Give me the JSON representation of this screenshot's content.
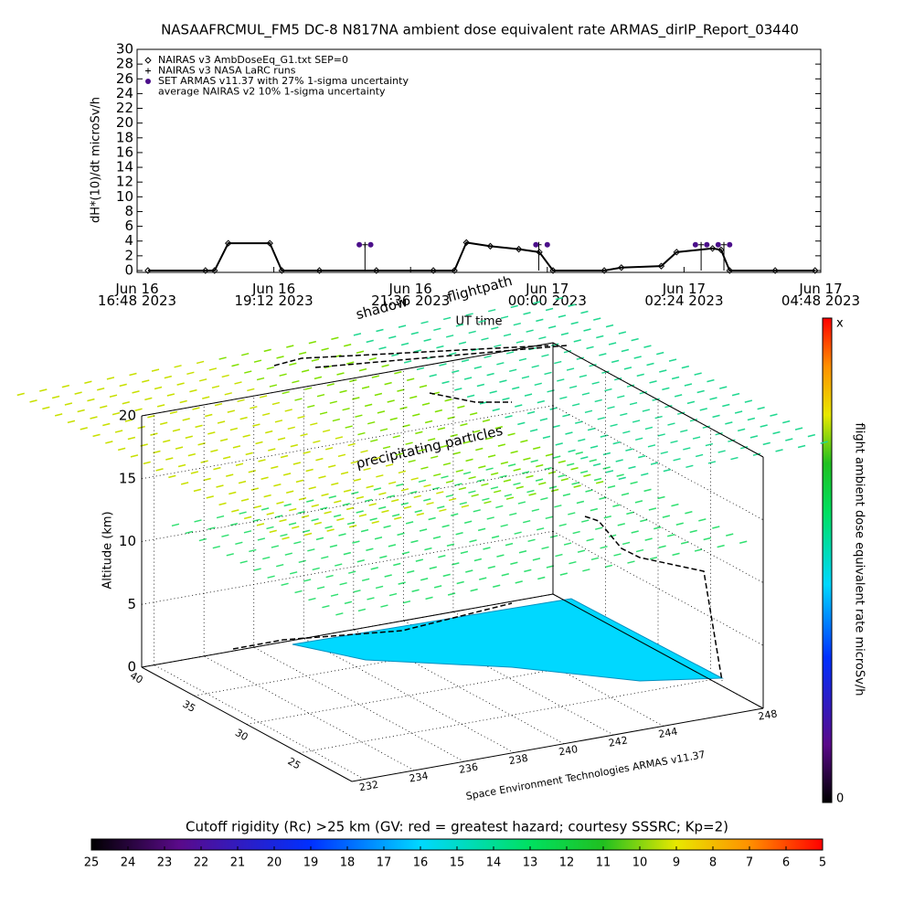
{
  "chart_data": [
    {
      "type": "line",
      "title": "NASAAFRCMUL_FM5 DC-8   N817NA ambient dose equivalent rate ARMAS_dirIP_Report_03440",
      "ylabel": "dH*(10)/dt microSv/h",
      "xlabel": "UT time",
      "xlim": [
        16.8,
        28.8
      ],
      "xticks": [
        {
          "value": 16.8,
          "label": "Jun 16\n16:48 2023"
        },
        {
          "value": 19.2,
          "label": "Jun 16\n19:12 2023"
        },
        {
          "value": 21.6,
          "label": "Jun 16\n21:36 2023"
        },
        {
          "value": 24,
          "label": "Jun 17\n00:00 2023"
        },
        {
          "value": 26.4,
          "label": "Jun 17\n02:24 2023"
        },
        {
          "value": 28.8,
          "label": "Jun 17\n04:48 2023"
        }
      ],
      "ylim": [
        0,
        30
      ],
      "yticks": [
        0,
        2,
        4,
        6,
        8,
        10,
        12,
        14,
        16,
        18,
        20,
        22,
        24,
        26,
        28,
        30
      ],
      "series": [
        {
          "name": "NAIRAS v3 AmbDoseEq_G1.txt SEP=0",
          "color": "#000000",
          "marker": "diamond",
          "x": [
            16.99,
            18.0,
            18.16,
            18.4,
            19.13,
            19.34,
            20.0,
            21.0,
            22.0,
            22.37,
            22.58,
            23.0,
            23.5,
            23.86,
            24.1,
            25.0,
            25.3,
            26.0,
            26.27,
            26.9,
            27.05,
            27.2,
            28.0,
            28.7
          ],
          "values": [
            0,
            0,
            0,
            3.7,
            3.7,
            0,
            0,
            0,
            0,
            0,
            3.8,
            3.3,
            2.9,
            2.5,
            0,
            0,
            0.4,
            0.6,
            2.5,
            3.0,
            2.8,
            0,
            0,
            0
          ]
        },
        {
          "name": "NAIRAS v3 NASA LaRC runs",
          "color": "#000000",
          "marker": "plus",
          "x": [
            20.8,
            23.85,
            26.7,
            27.1
          ],
          "values": [
            3.5,
            3.5,
            3.5,
            3.5
          ]
        },
        {
          "name": "SET ARMAS v11.37 with 27% 1-sigma uncertainty",
          "color": "#4b0f8a",
          "marker": "dot",
          "x": [
            20.7,
            20.9,
            23.8,
            24.0,
            26.6,
            26.8,
            27.0,
            27.2
          ],
          "values": [
            3.5,
            3.5,
            3.5,
            3.5,
            3.5,
            3.5,
            3.5,
            3.5
          ]
        },
        {
          "name": "average NAIRAS v2 10% 1-sigma uncertainty",
          "color": "#000000",
          "marker": "none"
        }
      ]
    },
    {
      "type": "surface3d",
      "annotations": [
        "shadow",
        "flightpath",
        "precipitating particles"
      ],
      "zlabel": "Altitude (km)",
      "footer": "Space Environment Technologies ARMAS v11.37",
      "xlim": [
        231.5,
        248
      ],
      "xticks": [
        232,
        234,
        236,
        238,
        240,
        242,
        244,
        248
      ],
      "ylim": [
        40,
        20
      ],
      "yticks": [
        40,
        35,
        30,
        25
      ],
      "zlim": [
        0,
        20
      ],
      "zticks": [
        0,
        5,
        10,
        15,
        20
      ]
    },
    {
      "type": "colorbar",
      "label": "flight ambient dose equivalent rate microSv/h",
      "top_label": "x",
      "bottom_label": "0"
    },
    {
      "type": "colorbar",
      "title": "Cutoff rigidity (Rc) >25 km (GV: red = greatest hazard; courtesy SSSRC; Kp=2)",
      "xlim": [
        25,
        5
      ],
      "xticks": [
        25,
        24,
        23,
        22,
        21,
        20,
        19,
        18,
        17,
        16,
        15,
        14,
        13,
        12,
        11,
        10,
        9,
        8,
        7,
        6,
        5
      ]
    }
  ]
}
